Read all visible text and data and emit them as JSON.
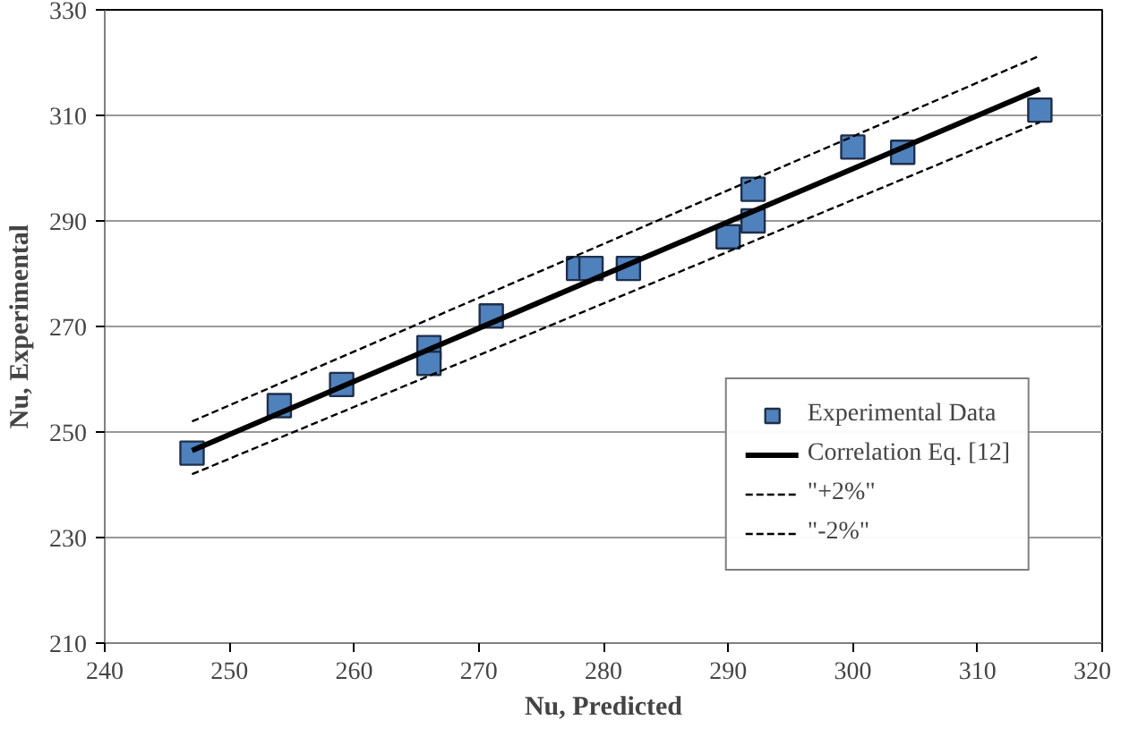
{
  "chart_data": {
    "type": "scatter",
    "xlabel": "Nu, Predicted",
    "ylabel": "Nu, Experimental",
    "xlim": [
      240,
      320
    ],
    "ylim": [
      210,
      330
    ],
    "xticks": [
      240,
      250,
      260,
      270,
      280,
      290,
      300,
      310,
      320
    ],
    "yticks": [
      210,
      230,
      250,
      270,
      290,
      310,
      330
    ],
    "grid": "y",
    "legend": "bottom right",
    "marker": "square",
    "series": [
      {
        "name": "Experimental Data",
        "color": "#4f81bd",
        "x": [
          247,
          254,
          259,
          266,
          266,
          271,
          278,
          279,
          282,
          290,
          292,
          292,
          300,
          304,
          315
        ],
        "values": [
          246,
          255,
          259,
          266,
          263,
          272,
          281,
          281,
          281,
          287,
          290,
          296,
          304,
          303,
          311
        ]
      },
      {
        "name": "Correlation Eq. [12]",
        "type": "line",
        "color": "#000000",
        "line_style": "solid",
        "marker": "none",
        "x": [
          247,
          315
        ],
        "values": [
          246.5,
          315
        ]
      },
      {
        "name": "\"+2%\"",
        "type": "line",
        "color": "#000000",
        "line_style": "dashed",
        "marker": "none",
        "x": [
          247,
          315
        ],
        "values": [
          252,
          321.3
        ]
      },
      {
        "name": "\"-2%\"",
        "type": "line",
        "color": "#000000",
        "line_style": "dashed",
        "marker": "none",
        "x": [
          247,
          315
        ],
        "values": [
          242,
          308.7
        ]
      }
    ]
  }
}
